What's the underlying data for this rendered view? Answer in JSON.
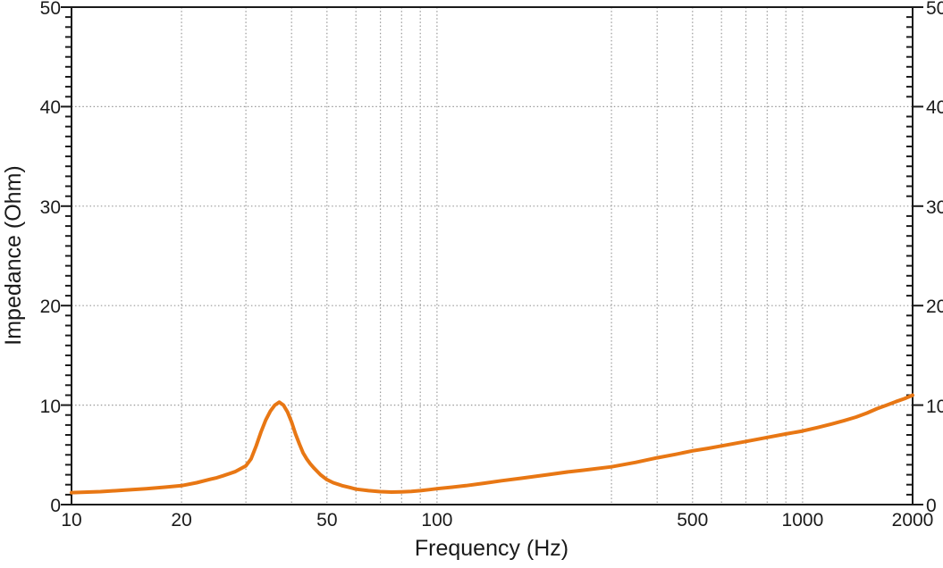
{
  "chart_data": {
    "type": "line",
    "title": "",
    "xlabel": "Frequency (Hz)",
    "ylabel": "Impedance (Ohm)",
    "x_scale": "log",
    "xlim": [
      10,
      2000
    ],
    "ylim": [
      0,
      50
    ],
    "grid": "dotted",
    "legend": null,
    "y_axis_labels_on_both_sides": true,
    "x_ticks": [
      {
        "v": 10,
        "label": "10"
      },
      {
        "v": 20,
        "label": "20"
      },
      {
        "v": 50,
        "label": "50"
      },
      {
        "v": 100,
        "label": "100"
      },
      {
        "v": 500,
        "label": "500"
      },
      {
        "v": 1000,
        "label": "1000"
      },
      {
        "v": 2000,
        "label": "2000"
      }
    ],
    "x_gridlines": [
      20,
      30,
      40,
      50,
      60,
      70,
      80,
      90,
      100,
      300,
      400,
      500,
      600,
      700,
      800,
      900,
      1000
    ],
    "y_ticks": [
      {
        "v": 0,
        "label": "0"
      },
      {
        "v": 10,
        "label": "10"
      },
      {
        "v": 20,
        "label": "20"
      },
      {
        "v": 30,
        "label": "30"
      },
      {
        "v": 40,
        "label": "40"
      },
      {
        "v": 50,
        "label": "50"
      }
    ],
    "y_gridlines": [
      10,
      20,
      30,
      40
    ],
    "y_minor_step": 1,
    "colors": {
      "curve": "#E87714",
      "axis": "#1a1a1a",
      "grid": "#999999",
      "text": "#1a1a1a",
      "background": "#ffffff"
    },
    "series": [
      {
        "name": "impedance",
        "points": [
          [
            10,
            1.2
          ],
          [
            12,
            1.3
          ],
          [
            14,
            1.45
          ],
          [
            16,
            1.6
          ],
          [
            18,
            1.75
          ],
          [
            20,
            1.9
          ],
          [
            22,
            2.2
          ],
          [
            24,
            2.55
          ],
          [
            25,
            2.7
          ],
          [
            26,
            2.9
          ],
          [
            28,
            3.3
          ],
          [
            30,
            3.9
          ],
          [
            31,
            4.6
          ],
          [
            32,
            5.9
          ],
          [
            33,
            7.3
          ],
          [
            34,
            8.5
          ],
          [
            35,
            9.4
          ],
          [
            36,
            10.0
          ],
          [
            37,
            10.3
          ],
          [
            38,
            10.0
          ],
          [
            39,
            9.3
          ],
          [
            40,
            8.3
          ],
          [
            41,
            7.1
          ],
          [
            42,
            6.1
          ],
          [
            43,
            5.2
          ],
          [
            44,
            4.6
          ],
          [
            45,
            4.1
          ],
          [
            46,
            3.7
          ],
          [
            48,
            3.0
          ],
          [
            50,
            2.5
          ],
          [
            52,
            2.2
          ],
          [
            55,
            1.9
          ],
          [
            58,
            1.7
          ],
          [
            60,
            1.55
          ],
          [
            65,
            1.4
          ],
          [
            70,
            1.3
          ],
          [
            75,
            1.26
          ],
          [
            80,
            1.28
          ],
          [
            85,
            1.33
          ],
          [
            90,
            1.4
          ],
          [
            95,
            1.5
          ],
          [
            100,
            1.6
          ],
          [
            110,
            1.75
          ],
          [
            120,
            1.9
          ],
          [
            135,
            2.15
          ],
          [
            150,
            2.4
          ],
          [
            170,
            2.65
          ],
          [
            200,
            3.0
          ],
          [
            230,
            3.3
          ],
          [
            250,
            3.45
          ],
          [
            300,
            3.8
          ],
          [
            350,
            4.25
          ],
          [
            400,
            4.7
          ],
          [
            450,
            5.05
          ],
          [
            500,
            5.4
          ],
          [
            550,
            5.65
          ],
          [
            600,
            5.9
          ],
          [
            700,
            6.35
          ],
          [
            800,
            6.75
          ],
          [
            900,
            7.1
          ],
          [
            1000,
            7.4
          ],
          [
            1100,
            7.75
          ],
          [
            1200,
            8.1
          ],
          [
            1300,
            8.45
          ],
          [
            1400,
            8.8
          ],
          [
            1500,
            9.2
          ],
          [
            1600,
            9.65
          ],
          [
            1700,
            10.0
          ],
          [
            1800,
            10.35
          ],
          [
            1900,
            10.65
          ],
          [
            2000,
            11.0
          ]
        ]
      }
    ]
  }
}
